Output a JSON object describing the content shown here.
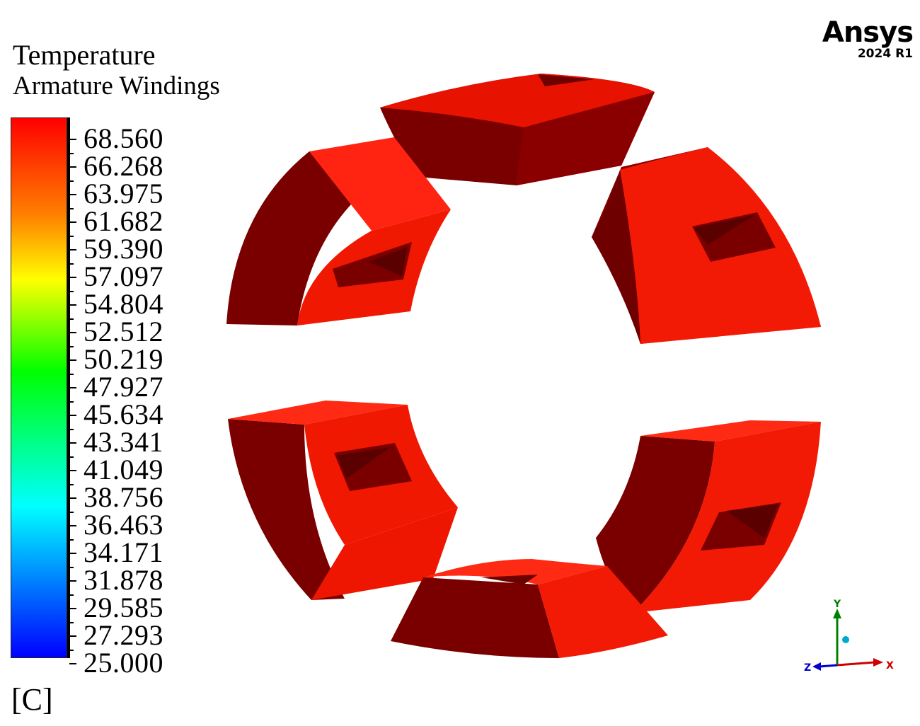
{
  "legend": {
    "title": "Temperature",
    "subtitle": "Armature Windings",
    "unit": "[C]",
    "values": [
      "68.560",
      "66.268",
      "63.975",
      "61.682",
      "59.390",
      "57.097",
      "54.804",
      "52.512",
      "50.219",
      "47.927",
      "45.634",
      "43.341",
      "41.049",
      "38.756",
      "36.463",
      "34.171",
      "31.878",
      "29.585",
      "27.293",
      "25.000"
    ],
    "colors": {
      "max": "#ff0000",
      "upper": "#ff8000",
      "mid_upper": "#ffff00",
      "mid": "#00ff00",
      "mid_lower": "#00ffff",
      "min": "#0000ff"
    }
  },
  "branding": {
    "name": "Ansys",
    "version": "2024 R1"
  },
  "model": {
    "shaded_color": "#ff1a0a",
    "shadow_color": "#7a0000",
    "segments": [
      "top",
      "upper-left",
      "upper-right",
      "lower-left",
      "lower-right",
      "bottom"
    ]
  },
  "triad": {
    "x": "X",
    "y": "Y",
    "z": "Z",
    "x_color": "#cc0000",
    "y_color": "#008000",
    "z_color": "#0000cc"
  }
}
